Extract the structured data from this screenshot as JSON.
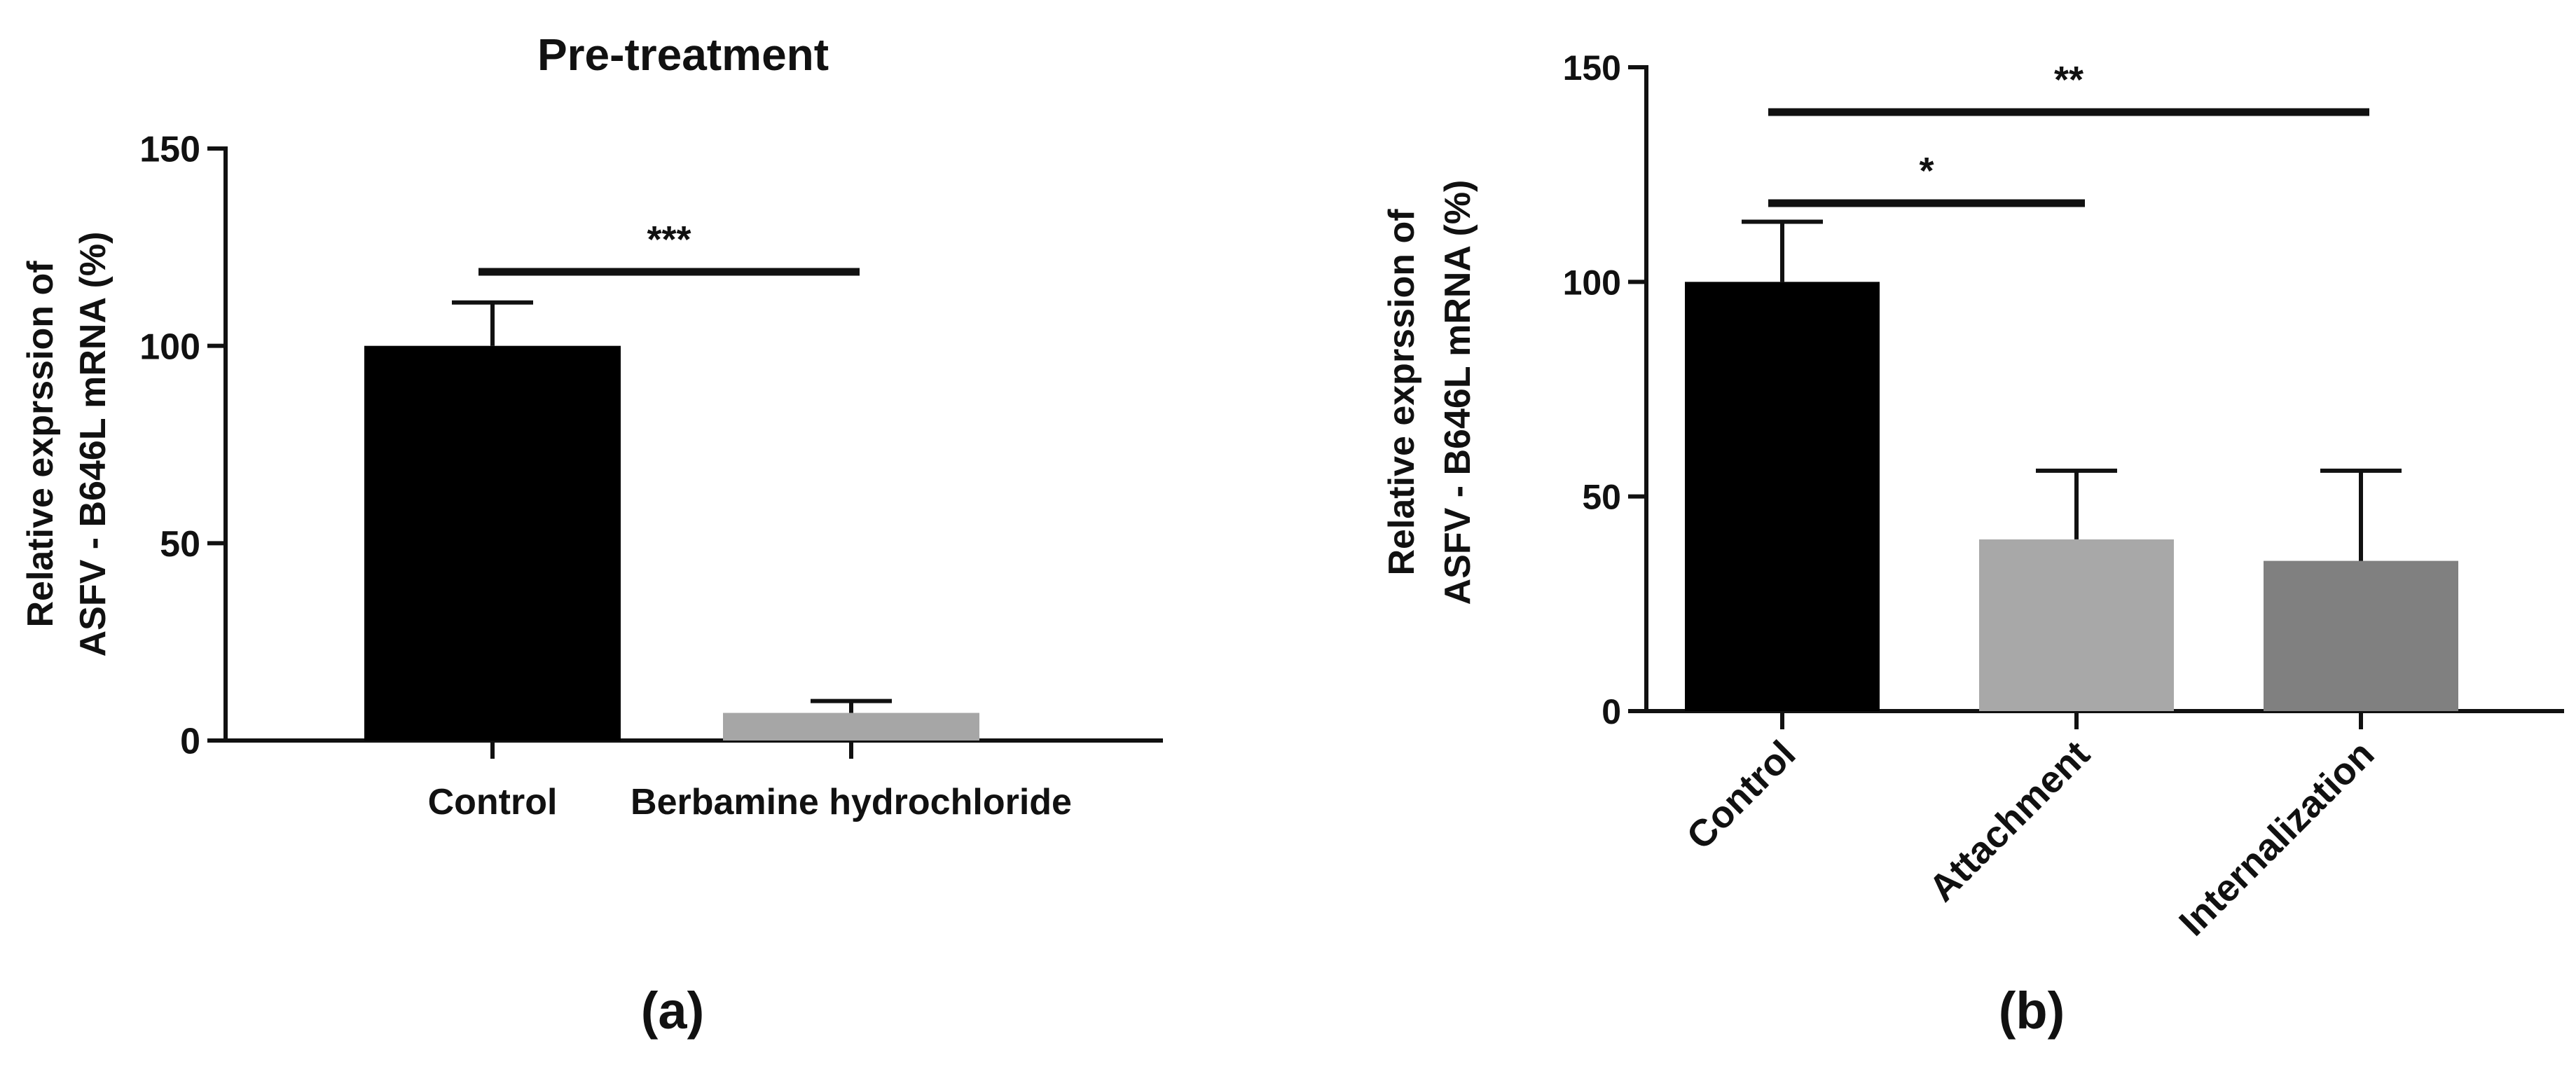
{
  "chart_data": [
    {
      "type": "bar",
      "title": "Pre-treatment",
      "xlabel": "",
      "ylabel": [
        "Relative exprssion of",
        "ASFV - B646L mRNA (%)"
      ],
      "ylim": [
        0,
        150
      ],
      "yticks": [
        0,
        50,
        100,
        150
      ],
      "categories": [
        "Control",
        "Berbamine hydrochloride"
      ],
      "values": [
        100,
        7
      ],
      "errors": [
        11,
        3
      ],
      "colors": [
        "#000000",
        "#a6a6a6"
      ],
      "significance": [
        {
          "from": 0,
          "to": 1,
          "label": "***"
        }
      ],
      "panel_label": "(a)"
    },
    {
      "type": "bar",
      "title": "",
      "xlabel": "",
      "ylabel": [
        "Relative exprssion of",
        "ASFV - B646L mRNA (%)"
      ],
      "ylim": [
        0,
        150
      ],
      "yticks": [
        0,
        50,
        100,
        150
      ],
      "categories": [
        "Control",
        "Attachment",
        "Internalization"
      ],
      "values": [
        100,
        40,
        35
      ],
      "errors": [
        14,
        16,
        21
      ],
      "colors": [
        "#000000",
        "#a8a8a8",
        "#808080"
      ],
      "significance": [
        {
          "from": 0,
          "to": 1,
          "label": "*"
        },
        {
          "from": 0,
          "to": 2,
          "label": "**"
        }
      ],
      "panel_label": "(b)"
    }
  ]
}
